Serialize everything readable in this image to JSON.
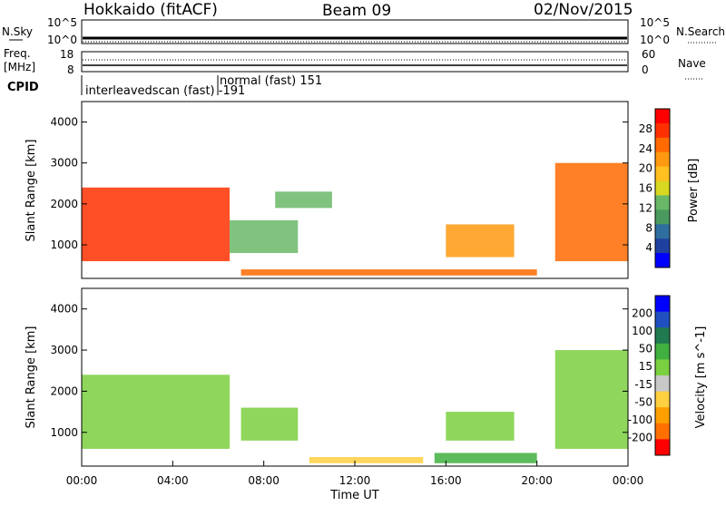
{
  "header": {
    "station": "Hokkaido (fitACF)",
    "beam": "Beam 09",
    "date": "02/Nov/2015"
  },
  "noise_panel": {
    "left_label": "N.Sky",
    "right_label": "N.Search",
    "left_ticks": [
      "10^5",
      "10^0"
    ],
    "right_ticks": [
      "10^5",
      "10^0"
    ]
  },
  "freq_panel": {
    "left_label_1": "Freq.",
    "left_label_2": "[MHz]",
    "left_ticks": [
      "18",
      "8"
    ],
    "right_label": "Nave",
    "right_ticks": [
      "60",
      "0"
    ]
  },
  "cpid": {
    "label": "CPID",
    "entries": [
      {
        "text": "interleavedscan (fast) -191"
      },
      {
        "text": "normal (fast) 151"
      }
    ]
  },
  "time_axis": {
    "label": "Time UT",
    "ticks": [
      "00:00",
      "04:00",
      "08:00",
      "12:00",
      "16:00",
      "20:00",
      "00:00"
    ]
  },
  "power_panel": {
    "ylabel": "Slant Range [km]",
    "yticks": [
      "4000",
      "3000",
      "2000",
      "1000"
    ],
    "colorbar_label": "Power [dB]",
    "colorbar_ticks": [
      "28",
      "24",
      "20",
      "16",
      "12",
      "8",
      "4"
    ],
    "colorbar_colors": [
      "#0000ff",
      "#2040a0",
      "#2e6f9f",
      "#4a9a60",
      "#68b868",
      "#d8d820",
      "#ffc020",
      "#ff9a10",
      "#ff6a00",
      "#ff3000",
      "#ff0000"
    ]
  },
  "velocity_panel": {
    "ylabel": "Slant Range [km]",
    "yticks": [
      "4000",
      "3000",
      "2000",
      "1000"
    ],
    "colorbar_label": "Velocity [m s^-1]",
    "colorbar_ticks": [
      "200",
      "100",
      "50",
      "15",
      "-15",
      "-50",
      "-100",
      "-200"
    ],
    "colorbar_colors": [
      "#0000ff",
      "#2050c0",
      "#207a50",
      "#40b040",
      "#7ad040",
      "#c8c8c8",
      "#ffd040",
      "#ffa000",
      "#ff7000",
      "#ff0000"
    ]
  },
  "chart_data": [
    {
      "type": "heatmap",
      "title": "Power [dB]",
      "xlabel": "Time UT",
      "ylabel": "Slant Range [km]",
      "x": [
        "00:00",
        "04:00",
        "08:00",
        "12:00",
        "16:00",
        "20:00",
        "00:00"
      ],
      "ylim": [
        180,
        4500
      ],
      "clim": [
        0,
        30
      ],
      "regions": [
        {
          "t_start": 0.0,
          "t_end": 6.5,
          "range_low": 600,
          "range_high": 2400,
          "value": 27
        },
        {
          "t_start": 6.5,
          "t_end": 9.5,
          "range_low": 800,
          "range_high": 1600,
          "value": 12
        },
        {
          "t_start": 8.5,
          "t_end": 11.0,
          "range_low": 1900,
          "range_high": 2300,
          "value": 12
        },
        {
          "t_start": 16.0,
          "t_end": 19.0,
          "range_low": 700,
          "range_high": 1500,
          "value": 20
        },
        {
          "t_start": 7.0,
          "t_end": 20.0,
          "range_low": 250,
          "range_high": 400,
          "value": 24
        },
        {
          "t_start": 20.8,
          "t_end": 24.0,
          "range_low": 600,
          "range_high": 3000,
          "value": 24
        }
      ]
    },
    {
      "type": "heatmap",
      "title": "Velocity [m s^-1]",
      "xlabel": "Time UT",
      "ylabel": "Slant Range [km]",
      "x": [
        "00:00",
        "04:00",
        "08:00",
        "12:00",
        "16:00",
        "20:00",
        "00:00"
      ],
      "ylim": [
        180,
        4500
      ],
      "clim": [
        -200,
        200
      ],
      "regions": [
        {
          "t_start": 0.0,
          "t_end": 6.5,
          "range_low": 600,
          "range_high": 2400,
          "value": 0
        },
        {
          "t_start": 7.0,
          "t_end": 9.5,
          "range_low": 800,
          "range_high": 1600,
          "value": 0
        },
        {
          "t_start": 10.0,
          "t_end": 15.0,
          "range_low": 250,
          "range_high": 400,
          "value": -60
        },
        {
          "t_start": 15.5,
          "t_end": 20.0,
          "range_low": 250,
          "range_high": 500,
          "value": 40
        },
        {
          "t_start": 16.0,
          "t_end": 19.0,
          "range_low": 800,
          "range_high": 1500,
          "value": 0
        },
        {
          "t_start": 20.8,
          "t_end": 24.0,
          "range_low": 600,
          "range_high": 3000,
          "value": 0
        }
      ]
    }
  ]
}
